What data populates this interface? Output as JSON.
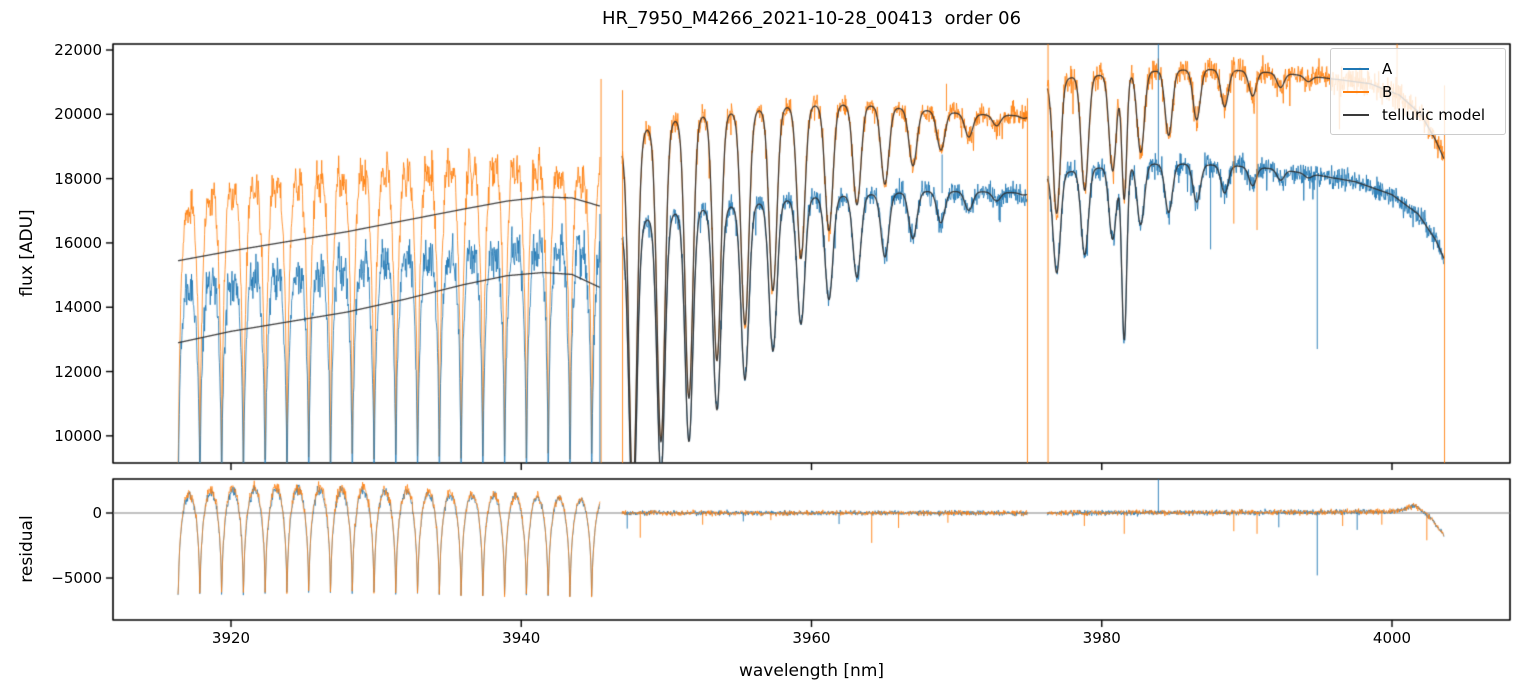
{
  "chart_data": {
    "type": "line",
    "title": "HR_7950_M4266_2021-10-28_00413  order 06",
    "xlabel": "wavelength [nm]",
    "xlim": [
      3911.9,
      4008.1
    ],
    "x_ticks": [
      3920,
      3940,
      3960,
      3980,
      4000
    ],
    "seed": 42,
    "panels": {
      "flux": {
        "ylabel": "flux [ADU]",
        "ylim": [
          9130,
          22190
        ],
        "yticks": [
          10000,
          12000,
          14000,
          16000,
          18000,
          20000,
          22000
        ]
      },
      "residual": {
        "ylabel": "residual",
        "ylim": [
          -8300,
          2615
        ],
        "yticks": [
          0,
          -5000
        ],
        "zero_line": true,
        "zero_line_color": "#808080"
      }
    },
    "legend": {
      "position": "upper right",
      "entries": [
        {
          "label": "A",
          "color": "#1f77b4"
        },
        {
          "label": "B",
          "color": "#ff7f0e"
        },
        {
          "label": "telluric model",
          "color": "#3a3a3a"
        }
      ]
    },
    "colors": {
      "A": "#1f77b4",
      "B": "#ff7f0e",
      "model": "#2e2e2e",
      "spine": "#000000"
    },
    "segments": [
      {
        "name": "order-block-1",
        "kind": "comb",
        "wl_range": [
          3916.35,
          3945.45
        ],
        "comb": {
          "period": 1.5,
          "phase": 3917.86,
          "arc_exp": 0.3,
          "floor_flux": 5000,
          "floor_resid": -9800,
          "mid_notch": 0.05
        },
        "B_top": [
          [
            3916.4,
            17450
          ],
          [
            3919,
            18150
          ],
          [
            3923,
            18400
          ],
          [
            3927,
            18550
          ],
          [
            3931,
            18800
          ],
          [
            3935,
            18850
          ],
          [
            3939,
            19000
          ],
          [
            3942,
            18900
          ],
          [
            3944,
            18700
          ],
          [
            3945.4,
            18650
          ]
        ],
        "A_top": [
          [
            3916.4,
            14700
          ],
          [
            3919,
            15250
          ],
          [
            3923,
            15500
          ],
          [
            3927,
            15700
          ],
          [
            3931,
            16000
          ],
          [
            3935,
            16100
          ],
          [
            3939,
            16350
          ],
          [
            3942,
            16400
          ],
          [
            3944,
            16300
          ],
          [
            3945.4,
            16150
          ]
        ],
        "model_B": [
          [
            3916.4,
            15450
          ],
          [
            3920,
            15750
          ],
          [
            3924,
            16050
          ],
          [
            3928,
            16350
          ],
          [
            3932,
            16700
          ],
          [
            3936,
            17050
          ],
          [
            3939,
            17300
          ],
          [
            3941.5,
            17430
          ],
          [
            3943.5,
            17400
          ],
          [
            3945.4,
            17150
          ]
        ],
        "model_A": [
          [
            3916.4,
            12900
          ],
          [
            3920,
            13250
          ],
          [
            3924,
            13550
          ],
          [
            3928,
            13850
          ],
          [
            3932,
            14250
          ],
          [
            3936,
            14700
          ],
          [
            3939,
            14980
          ],
          [
            3941.5,
            15080
          ],
          [
            3943.5,
            15020
          ],
          [
            3945.4,
            14620
          ]
        ],
        "noise_frac_B": 0.03,
        "noise_frac_A": 0.042,
        "resid_top_B": [
          [
            3916.4,
            1400
          ],
          [
            3920,
            1900
          ],
          [
            3926,
            2000
          ],
          [
            3931,
            1800
          ],
          [
            3936,
            1500
          ],
          [
            3941,
            1300
          ],
          [
            3945.4,
            1000
          ]
        ],
        "resid_top_A": [
          [
            3916.4,
            1300
          ],
          [
            3920,
            1700
          ],
          [
            3926,
            1800
          ],
          [
            3931,
            1700
          ],
          [
            3936,
            1400
          ],
          [
            3941,
            1200
          ],
          [
            3945.4,
            900
          ]
        ],
        "spikes_flux": [
          {
            "series": "B",
            "wl": 3945.5,
            "from": 5000,
            "to": 21100
          },
          {
            "series": "A",
            "wl": 3945.42,
            "from": 5000,
            "to": 16900
          }
        ],
        "resid_spikes": []
      },
      {
        "name": "order-block-2",
        "kind": "dips",
        "wl_range": [
          3946.95,
          3974.9
        ],
        "B_base": [
          [
            3946.95,
            18950
          ],
          [
            3948.5,
            19500
          ],
          [
            3951,
            19850
          ],
          [
            3955,
            20050
          ],
          [
            3959,
            20250
          ],
          [
            3963,
            20300
          ],
          [
            3967,
            20150
          ],
          [
            3971,
            20000
          ],
          [
            3974.9,
            19950
          ]
        ],
        "A_base": [
          [
            3946.95,
            16350
          ],
          [
            3949,
            16800
          ],
          [
            3952,
            17000
          ],
          [
            3956,
            17200
          ],
          [
            3960,
            17400
          ],
          [
            3964,
            17500
          ],
          [
            3968,
            17600
          ],
          [
            3971,
            17600
          ],
          [
            3974.9,
            17550
          ]
        ],
        "dips": {
          "period": 1.93,
          "phase": 3947.7,
          "sigma": 0.27,
          "depth_B": 11500,
          "decay_span": 29,
          "decay_exp": 1.6,
          "A_frac": 0.82
        },
        "extra_dips": [],
        "noise_frac_B": 0.018,
        "noise_frac_A": 0.02,
        "resid_noise": 190,
        "resid_drift": [
          [
            3946.95,
            0
          ],
          [
            3974.9,
            0
          ]
        ],
        "spikes_flux": [
          {
            "series": "B",
            "wl": 3946.98,
            "from": 9000,
            "to": 20750
          },
          {
            "series": "B",
            "wl": 3974.88,
            "from": 9000,
            "to": 20500
          },
          {
            "series": "B",
            "wl": 3969.3,
            "from": 20100,
            "to": 20950
          },
          {
            "series": "A",
            "wl": 3969.0,
            "from": 17550,
            "to": 18750
          }
        ],
        "resid_spikes": [
          {
            "series": "B",
            "wl": 3948.2,
            "to": -1900
          },
          {
            "series": "B",
            "wl": 3952.5,
            "to": -900
          },
          {
            "series": "B",
            "wl": 3957.2,
            "to": -550
          },
          {
            "series": "B",
            "wl": 3964.15,
            "to": -2300
          },
          {
            "series": "B",
            "wl": 3966.0,
            "to": -1150
          },
          {
            "series": "B",
            "wl": 3969.4,
            "to": -750
          },
          {
            "series": "A",
            "wl": 3947.3,
            "to": -1200
          },
          {
            "series": "A",
            "wl": 3955.3,
            "to": -650
          },
          {
            "series": "A",
            "wl": 3961.9,
            "to": -850
          }
        ]
      },
      {
        "name": "order-block-3",
        "kind": "dips",
        "wl_range": [
          3976.25,
          4003.6
        ],
        "B_base": [
          [
            3976.25,
            20950
          ],
          [
            3978,
            21150
          ],
          [
            3981,
            21250
          ],
          [
            3984,
            21350
          ],
          [
            3987,
            21400
          ],
          [
            3990,
            21350
          ],
          [
            3993,
            21250
          ],
          [
            3996,
            21100
          ],
          [
            3998.5,
            20950
          ],
          [
            4000.5,
            20600
          ],
          [
            4002,
            20000
          ],
          [
            4003,
            19200
          ],
          [
            4003.6,
            18600
          ]
        ],
        "A_base": [
          [
            3976.25,
            18100
          ],
          [
            3979,
            18300
          ],
          [
            3983,
            18450
          ],
          [
            3986,
            18450
          ],
          [
            3989,
            18400
          ],
          [
            3992,
            18300
          ],
          [
            3995,
            18100
          ],
          [
            3997.5,
            17900
          ],
          [
            4000,
            17500
          ],
          [
            4001.8,
            16900
          ],
          [
            4003,
            16100
          ],
          [
            4003.6,
            15500
          ]
        ],
        "dips": {
          "period": 1.93,
          "phase": 3976.9,
          "sigma": 0.25,
          "depth_B": 4300,
          "decay_span": 20,
          "decay_exp": 1.4,
          "A_frac": 0.75
        },
        "extra_dips": [
          {
            "series": "A",
            "wl": 3981.55,
            "depth": 5400,
            "sigma": 0.17
          },
          {
            "series": "B",
            "wl": 3981.55,
            "depth": 3900,
            "sigma": 0.17
          }
        ],
        "noise_frac_B": 0.02,
        "noise_frac_A": 0.02,
        "resid_noise": 210,
        "resid_drift": [
          [
            3976.25,
            0
          ],
          [
            4000,
            100
          ],
          [
            4001.6,
            550
          ],
          [
            4002.7,
            -400
          ],
          [
            4003.4,
            -1500
          ],
          [
            4003.6,
            -1750
          ]
        ],
        "spikes_flux": [
          {
            "series": "B",
            "wl": 3976.3,
            "from": 9130,
            "to": 22190
          },
          {
            "series": "B",
            "wl": 4003.62,
            "from": 9130,
            "to": 20900
          },
          {
            "series": "B",
            "wl": 4000.35,
            "from": 20600,
            "to": 22190
          },
          {
            "series": "B",
            "wl": 3989.1,
            "from": 21350,
            "to": 16600
          },
          {
            "series": "B",
            "wl": 3990.7,
            "from": 21350,
            "to": 16400
          },
          {
            "series": "A",
            "wl": 3983.9,
            "from": 18450,
            "to": 22190
          },
          {
            "series": "A",
            "wl": 3994.85,
            "from": 18100,
            "to": 12700
          },
          {
            "series": "A",
            "wl": 3987.5,
            "from": 18400,
            "to": 15800
          }
        ],
        "resid_spikes": [
          {
            "series": "A",
            "wl": 3983.9,
            "to": 2600
          },
          {
            "series": "A",
            "wl": 3994.85,
            "to": -4800
          },
          {
            "series": "A",
            "wl": 3997.6,
            "to": -1300
          },
          {
            "series": "A",
            "wl": 3992.2,
            "to": -1100
          },
          {
            "series": "B",
            "wl": 3978.8,
            "to": -1000
          },
          {
            "series": "B",
            "wl": 3981.55,
            "to": -1600
          },
          {
            "series": "B",
            "wl": 3989.1,
            "to": -1400
          },
          {
            "series": "B",
            "wl": 3990.7,
            "to": -1600
          },
          {
            "series": "B",
            "wl": 3996.6,
            "to": -1000
          },
          {
            "series": "B",
            "wl": 3999.3,
            "to": -900
          },
          {
            "series": "B",
            "wl": 4002.4,
            "to": -2100
          }
        ]
      }
    ]
  }
}
